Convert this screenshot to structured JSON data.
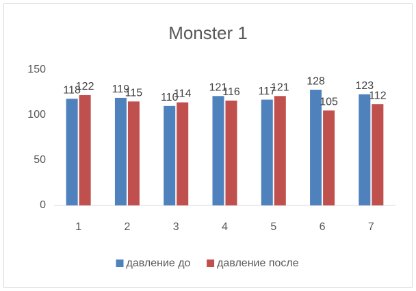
{
  "chart_data": {
    "type": "bar",
    "title": "Monster 1",
    "categories": [
      "1",
      "2",
      "3",
      "4",
      "5",
      "6",
      "7"
    ],
    "series": [
      {
        "name": "давление до",
        "color": "#4f81bd",
        "values": [
          118,
          119,
          110,
          121,
          117,
          128,
          123
        ]
      },
      {
        "name": "давление после",
        "color": "#c0504d",
        "values": [
          122,
          115,
          114,
          116,
          121,
          105,
          112
        ]
      }
    ],
    "ylim": [
      0,
      150
    ],
    "yticks": [
      0,
      50,
      100,
      150
    ],
    "grid": false,
    "legend": "bottom"
  }
}
